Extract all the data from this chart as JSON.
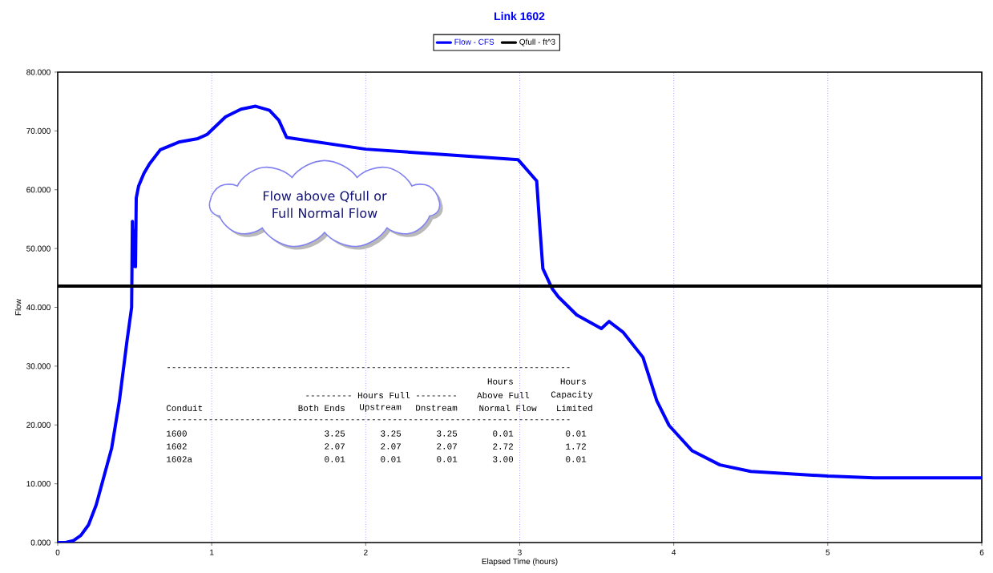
{
  "chart_data": {
    "type": "line",
    "title": "Link 1602",
    "xlabel": "Elapsed Time (hours)",
    "ylabel": "Flow",
    "xlim": [
      0,
      6
    ],
    "xticks": [
      0,
      1,
      2,
      3,
      4,
      5,
      6
    ],
    "ylim": [
      0,
      80
    ],
    "yticks": [
      {
        "value": 0,
        "label": "0.000"
      },
      {
        "value": 10,
        "label": "10.000"
      },
      {
        "value": 20,
        "label": "20.000"
      },
      {
        "value": 30,
        "label": "30.000"
      },
      {
        "value": 40,
        "label": "40.000"
      },
      {
        "value": 50,
        "label": "50.000"
      },
      {
        "value": 60,
        "label": "60.000"
      },
      {
        "value": 70,
        "label": "70.000"
      },
      {
        "value": 80,
        "label": "80.000"
      }
    ],
    "grid": "x",
    "legend": "top",
    "marker": "none",
    "line_style": "solid",
    "series": [
      {
        "name": "Flow - CFS",
        "color": "#0000ff",
        "x": [
          0,
          0.05,
          0.1,
          0.15,
          0.2,
          0.25,
          0.3,
          0.35,
          0.4,
          0.45,
          0.48,
          0.485,
          0.49,
          0.5,
          0.505,
          0.51,
          0.525,
          0.56,
          0.596,
          0.666,
          0.786,
          0.91,
          0.97,
          1.09,
          1.19,
          1.285,
          1.375,
          1.436,
          1.486,
          2.0,
          2.5,
          2.99,
          3.11,
          3.13,
          3.15,
          3.21,
          3.25,
          3.37,
          3.53,
          3.58,
          3.67,
          3.8,
          3.89,
          3.97,
          4.12,
          4.3,
          4.5,
          5.0,
          5.3,
          6.0
        ],
        "values": [
          0,
          0,
          0.3,
          1.2,
          3.0,
          6.4,
          11.2,
          16,
          24,
          34.3,
          40,
          54.6,
          47,
          53,
          46.9,
          58.6,
          60.6,
          62.8,
          64.4,
          66.8,
          68.1,
          68.7,
          69.4,
          72.4,
          73.7,
          74.2,
          73.5,
          71.8,
          68.9,
          66.9,
          66.0,
          65.1,
          61.5,
          53.8,
          46.6,
          43.2,
          41.8,
          38.7,
          36.4,
          37.6,
          35.8,
          31.5,
          24.1,
          19.9,
          15.6,
          13.2,
          12.1,
          11.3,
          11.0,
          11.0
        ]
      },
      {
        "name": "Qfull - ft^3",
        "color": "#000000",
        "x": [
          0,
          6
        ],
        "values": [
          43.6,
          43.6
        ]
      }
    ],
    "annotations": [
      "Flow above Qfull or Full Normal Flow",
      "-----------------------------------------------------------------------------",
      "-----------------------------------------------------------------------------",
      "Hours",
      "Hours",
      "--------- Hours Full --------",
      "Above Full",
      "Capacity",
      "Conduit",
      "Both Ends",
      "Upstream",
      "Dnstream",
      "Normal Flow",
      "Limited",
      "1600",
      "3.25",
      "3.25",
      "3.25",
      "0.01",
      "0.01",
      "1602",
      "2.07",
      "2.07",
      "2.07",
      "2.72",
      "1.72",
      "1602a",
      "0.01",
      "0.01",
      "0.01",
      "3.00",
      "0.01"
    ]
  }
}
